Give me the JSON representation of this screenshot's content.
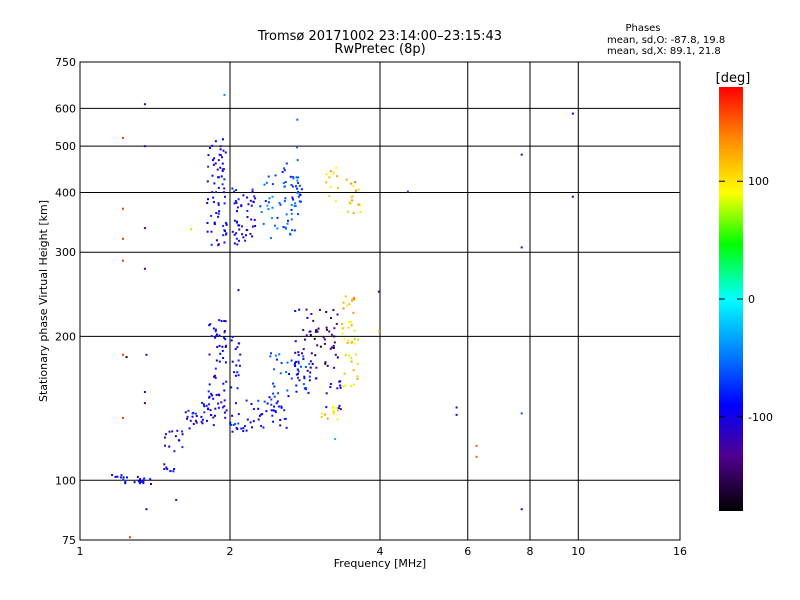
{
  "chart_data": {
    "type": "scatter",
    "title": "Tromsø 20171002 23:14:00–23:15:43",
    "subtitle": "RwPretec (8p)",
    "xlabel": "Frequency [MHz]",
    "ylabel": "Stationary phase Virtual Height [km]",
    "x_scale": "log",
    "y_scale": "log",
    "xlim": [
      1,
      16
    ],
    "ylim": [
      75,
      750
    ],
    "x_ticks": [
      1,
      2,
      4,
      6,
      8,
      10,
      16
    ],
    "x_tick_labels": [
      "1",
      "2",
      "4",
      "6",
      "8",
      "10",
      "16"
    ],
    "y_ticks": [
      75,
      100,
      200,
      300,
      400,
      500,
      600,
      750
    ],
    "y_tick_labels": [
      "75",
      "100",
      "200",
      "300",
      "400",
      "500",
      "600",
      "750"
    ],
    "grid": true,
    "phase_box": {
      "heading": "Phases",
      "line_o": "mean, sd,O: -87.8, 19.8",
      "line_x": "mean, sd,X:  89.1, 21.8"
    },
    "colorbar": {
      "label": "[deg]",
      "range": [
        -180,
        180
      ],
      "ticks": [
        100,
        0,
        -100
      ],
      "tick_labels": [
        "100",
        "0",
        "-100"
      ]
    },
    "clusters": [
      {
        "fmin": 1.16,
        "fmax": 1.25,
        "hmin": 98,
        "hmax": 103,
        "phase": -95,
        "n": 10
      },
      {
        "fmin": 1.28,
        "fmax": 1.4,
        "hmin": 98,
        "hmax": 102,
        "phase": -100,
        "n": 14
      },
      {
        "fmin": 1.47,
        "fmax": 1.55,
        "hmin": 104,
        "hmax": 108,
        "phase": -100,
        "n": 8
      },
      {
        "fmin": 1.48,
        "fmax": 1.62,
        "hmin": 115,
        "hmax": 128,
        "phase": -95,
        "n": 14
      },
      {
        "fmin": 1.62,
        "fmax": 1.72,
        "hmin": 125,
        "hmax": 140,
        "phase": -95,
        "n": 14
      },
      {
        "fmin": 1.75,
        "fmax": 1.86,
        "hmin": 130,
        "hmax": 150,
        "phase": -95,
        "n": 16
      },
      {
        "fmin": 1.8,
        "fmax": 1.97,
        "hmin": 135,
        "hmax": 220,
        "phase": -100,
        "n": 60
      },
      {
        "fmin": 2.0,
        "fmax": 2.2,
        "hmin": 126,
        "hmax": 132,
        "phase": -75,
        "n": 14
      },
      {
        "fmin": 2.0,
        "fmax": 2.1,
        "hmin": 135,
        "hmax": 210,
        "phase": -95,
        "n": 20
      },
      {
        "fmin": 2.15,
        "fmax": 2.6,
        "hmin": 128,
        "hmax": 150,
        "phase": -85,
        "n": 40
      },
      {
        "fmin": 2.4,
        "fmax": 2.9,
        "hmin": 150,
        "hmax": 185,
        "phase": -70,
        "n": 40
      },
      {
        "fmin": 2.7,
        "fmax": 3.0,
        "hmin": 160,
        "hmax": 230,
        "phase": -110,
        "n": 30
      },
      {
        "fmin": 2.9,
        "fmax": 3.3,
        "hmin": 170,
        "hmax": 230,
        "phase": -140,
        "n": 40
      },
      {
        "fmin": 3.1,
        "fmax": 3.35,
        "hmin": 140,
        "hmax": 165,
        "phase": -105,
        "n": 12
      },
      {
        "fmin": 3.05,
        "fmax": 3.3,
        "hmin": 133,
        "hmax": 145,
        "phase": 110,
        "n": 12
      },
      {
        "fmin": 3.35,
        "fmax": 3.65,
        "hmin": 155,
        "hmax": 215,
        "phase": 100,
        "n": 30
      },
      {
        "fmin": 3.35,
        "fmax": 3.6,
        "hmin": 220,
        "hmax": 260,
        "phase": 120,
        "n": 10
      },
      {
        "fmin": 1.8,
        "fmax": 1.97,
        "hmin": 310,
        "hmax": 520,
        "phase": -95,
        "n": 70
      },
      {
        "fmin": 2.02,
        "fmax": 2.25,
        "hmin": 310,
        "hmax": 410,
        "phase": -95,
        "n": 50
      },
      {
        "fmin": 2.3,
        "fmax": 2.75,
        "hmin": 320,
        "hmax": 440,
        "phase": -60,
        "n": 55
      },
      {
        "fmin": 2.55,
        "fmax": 2.8,
        "hmin": 380,
        "hmax": 500,
        "phase": -80,
        "n": 20
      },
      {
        "fmin": 3.1,
        "fmax": 3.3,
        "hmin": 380,
        "hmax": 460,
        "phase": 110,
        "n": 12
      },
      {
        "fmin": 3.4,
        "fmax": 3.7,
        "hmin": 360,
        "hmax": 430,
        "phase": 120,
        "n": 16
      }
    ],
    "points": [
      {
        "x": 1.22,
        "y": 520,
        "phase": 160
      },
      {
        "x": 1.22,
        "y": 370,
        "phase": 160
      },
      {
        "x": 1.22,
        "y": 320,
        "phase": 160
      },
      {
        "x": 1.22,
        "y": 288,
        "phase": 160
      },
      {
        "x": 1.22,
        "y": 183,
        "phase": 160
      },
      {
        "x": 1.22,
        "y": 135,
        "phase": 160
      },
      {
        "x": 1.24,
        "y": 181,
        "phase": -170
      },
      {
        "x": 1.35,
        "y": 612,
        "phase": -115
      },
      {
        "x": 1.35,
        "y": 500,
        "phase": -115
      },
      {
        "x": 1.35,
        "y": 337,
        "phase": -130
      },
      {
        "x": 1.35,
        "y": 277,
        "phase": -125
      },
      {
        "x": 1.36,
        "y": 183,
        "phase": -120
      },
      {
        "x": 1.35,
        "y": 153,
        "phase": -110
      },
      {
        "x": 1.35,
        "y": 145,
        "phase": -125
      },
      {
        "x": 1.36,
        "y": 87,
        "phase": -110
      },
      {
        "x": 1.56,
        "y": 91,
        "phase": -110
      },
      {
        "x": 1.26,
        "y": 76,
        "phase": 160
      },
      {
        "x": 1.95,
        "y": 640,
        "phase": -40
      },
      {
        "x": 1.67,
        "y": 335,
        "phase": 110
      },
      {
        "x": 4.55,
        "y": 402,
        "phase": -60
      },
      {
        "x": 3.98,
        "y": 248,
        "phase": -140
      },
      {
        "x": 3.98,
        "y": 205,
        "phase": 110
      },
      {
        "x": 5.7,
        "y": 142,
        "phase": -110
      },
      {
        "x": 5.7,
        "y": 137,
        "phase": -110
      },
      {
        "x": 6.25,
        "y": 118,
        "phase": 150
      },
      {
        "x": 6.25,
        "y": 112,
        "phase": 150
      },
      {
        "x": 7.7,
        "y": 480,
        "phase": -115
      },
      {
        "x": 7.7,
        "y": 307,
        "phase": -115
      },
      {
        "x": 7.7,
        "y": 138,
        "phase": -60
      },
      {
        "x": 7.7,
        "y": 87,
        "phase": -115
      },
      {
        "x": 9.75,
        "y": 585,
        "phase": -100
      },
      {
        "x": 9.75,
        "y": 392,
        "phase": -100
      },
      {
        "x": 3.25,
        "y": 122,
        "phase": -20
      },
      {
        "x": 2.08,
        "y": 250,
        "phase": -110
      },
      {
        "x": 2.73,
        "y": 568,
        "phase": -55
      }
    ]
  }
}
